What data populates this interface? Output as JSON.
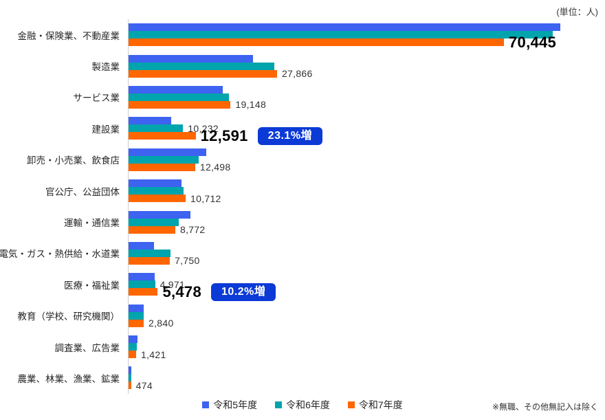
{
  "header": {
    "unit_note": "(単位：人)"
  },
  "footer": {
    "note": "※無職、その他無記入は除く"
  },
  "legend": {
    "items": [
      {
        "label": "令和5年度",
        "color": "#3D63F0"
      },
      {
        "label": "令和6年度",
        "color": "#00A4AC"
      },
      {
        "label": "令和7年度",
        "color": "#FF6600"
      }
    ]
  },
  "colors": {
    "series_r5": "#3D63F0",
    "series_r6": "#00A4AC",
    "series_r7": "#FF6600",
    "badge_background": "#0C3AD6",
    "axis_line": "#CCCCCC",
    "emphasis_text": "#000000"
  },
  "chart_data": {
    "type": "bar",
    "orientation": "horizontal",
    "title": "",
    "xlabel": "",
    "ylabel": "",
    "unit": "人",
    "xlim": [
      0,
      90000
    ],
    "grid": false,
    "legend_position": "bottom-center",
    "categories": [
      "金融・保険業、不動産業",
      "製造業",
      "サービス業",
      "建設業",
      "卸売・小売業、飲食店",
      "官公庁、公益団体",
      "運輸・通信業",
      "電気・ガス・熱供給・水道業",
      "医療・福祉業",
      "教育（学校、研究機関）",
      "調査業、広告業",
      "農業、林業、漁業、鉱業"
    ],
    "series": [
      {
        "name": "令和5年度",
        "color": "#3D63F0",
        "values": [
          81000,
          23400,
          17700,
          8000,
          14600,
          9900,
          11600,
          4800,
          4900,
          2800,
          1700,
          550
        ]
      },
      {
        "name": "令和6年度",
        "color": "#00A4AC",
        "values": [
          79600,
          27300,
          18800,
          10232,
          13200,
          10300,
          9400,
          7900,
          4971,
          2900,
          1500,
          520
        ]
      },
      {
        "name": "令和7年度",
        "color": "#FF6600",
        "values": [
          70445,
          27866,
          19148,
          12591,
          12498,
          10712,
          8772,
          7750,
          5478,
          2840,
          1421,
          474
        ]
      }
    ],
    "labeled_values_note": "only bars with printed labels have exact values; unlabeled bars estimated from pixel lengths",
    "bar_labels": [
      {
        "category_index": 0,
        "series_index": 2,
        "text": "70,445",
        "emphasis": true
      },
      {
        "category_index": 1,
        "series_index": 2,
        "text": "27,866"
      },
      {
        "category_index": 2,
        "series_index": 2,
        "text": "19,148"
      },
      {
        "category_index": 3,
        "series_index": 1,
        "text": "10,232"
      },
      {
        "category_index": 3,
        "series_index": 2,
        "text": "12,591",
        "emphasis": true,
        "badge": "23.1%増"
      },
      {
        "category_index": 4,
        "series_index": 2,
        "text": "12,498"
      },
      {
        "category_index": 5,
        "series_index": 2,
        "text": "10,712"
      },
      {
        "category_index": 6,
        "series_index": 2,
        "text": "8,772"
      },
      {
        "category_index": 7,
        "series_index": 2,
        "text": "7,750"
      },
      {
        "category_index": 8,
        "series_index": 1,
        "text": "4,971"
      },
      {
        "category_index": 8,
        "series_index": 2,
        "text": "5,478",
        "emphasis": true,
        "badge": "10.2%増"
      },
      {
        "category_index": 9,
        "series_index": 2,
        "text": "2,840"
      },
      {
        "category_index": 10,
        "series_index": 2,
        "text": "1,421"
      },
      {
        "category_index": 11,
        "series_index": 2,
        "text": "474"
      }
    ],
    "annotations": [
      {
        "category": "建設業",
        "text": "23.1%増"
      },
      {
        "category": "医療・福祉業",
        "text": "10.2%増"
      }
    ]
  }
}
